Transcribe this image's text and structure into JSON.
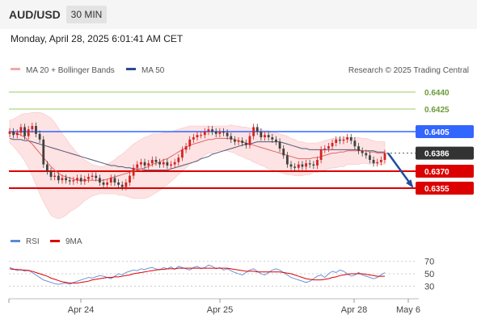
{
  "header": {
    "pair": "AUD/USD",
    "timeframe": "30 MIN"
  },
  "timestamp": "Monday, April 28, 2025 6:01:41 AM CET",
  "legend": {
    "ma20": "MA 20 + Bollinger Bands",
    "ma50": "MA 50"
  },
  "credit": "Research © 2025 Trading Central",
  "rsi_legend": {
    "rsi": "RSI",
    "ma9": "9MA"
  },
  "colors": {
    "bollinger": "#f4a8a8",
    "ma20": "#e06666",
    "ma50": "#555577",
    "resistance": "#3366ff",
    "support": "#dd0000",
    "target": "#99cc66",
    "bull": "#d32222",
    "bear": "#404040",
    "arrow": "#1f4fa0"
  },
  "chart_data": [
    {
      "type": "candlestick",
      "x_ticks": [
        "Apr 24",
        "Apr 25",
        "Apr 28",
        "May 6"
      ],
      "ylim": [
        0.6325,
        0.645
      ],
      "levels": [
        {
          "value": 0.644,
          "label": "0.6440",
          "kind": "target"
        },
        {
          "value": 0.6425,
          "label": "0.6425",
          "kind": "target"
        },
        {
          "value": 0.6405,
          "label": "0.6405",
          "kind": "resistance"
        },
        {
          "value": 0.6386,
          "label": "0.6386",
          "kind": "last"
        },
        {
          "value": 0.637,
          "label": "0.6370",
          "kind": "support"
        },
        {
          "value": 0.6355,
          "label": "0.6355",
          "kind": "support"
        }
      ],
      "close": [
        0.6405,
        0.6402,
        0.6404,
        0.6409,
        0.6401,
        0.6407,
        0.641,
        0.6403,
        0.6398,
        0.6376,
        0.637,
        0.6365,
        0.6366,
        0.6362,
        0.6364,
        0.6362,
        0.6361,
        0.6362,
        0.6364,
        0.6361,
        0.6363,
        0.6365,
        0.6366,
        0.6364,
        0.636,
        0.6358,
        0.636,
        0.6364,
        0.636,
        0.6358,
        0.6356,
        0.636,
        0.6366,
        0.6373,
        0.6376,
        0.6378,
        0.6375,
        0.6377,
        0.638,
        0.6378,
        0.6376,
        0.6378,
        0.6375,
        0.6376,
        0.6378,
        0.6382,
        0.6389,
        0.6392,
        0.6398,
        0.64,
        0.6402,
        0.6402,
        0.6405,
        0.6407,
        0.6405,
        0.6403,
        0.6405,
        0.6404,
        0.6401,
        0.6398,
        0.6396,
        0.6397,
        0.6395,
        0.6393,
        0.6401,
        0.6409,
        0.6405,
        0.64,
        0.6402,
        0.64,
        0.6398,
        0.6396,
        0.639,
        0.6384,
        0.6376,
        0.6374,
        0.6373,
        0.6376,
        0.6374,
        0.6377,
        0.6376,
        0.6375,
        0.638,
        0.6389,
        0.639,
        0.6392,
        0.6395,
        0.6398,
        0.6397,
        0.6398,
        0.64,
        0.6397,
        0.6392,
        0.6388,
        0.6386,
        0.6384,
        0.638,
        0.6377,
        0.6378,
        0.638,
        0.6386
      ],
      "ma20": [
        0.6405,
        0.6404,
        0.6403,
        0.6402,
        0.64,
        0.6397,
        0.6394,
        0.639,
        0.6386,
        0.6382,
        0.6378,
        0.6374,
        0.6371,
        0.6368,
        0.6366,
        0.6365,
        0.6364,
        0.6363,
        0.6362,
        0.6362,
        0.6362,
        0.6362,
        0.6362,
        0.6362,
        0.6362,
        0.6362,
        0.6363,
        0.6364,
        0.6365,
        0.6366,
        0.6367,
        0.6368,
        0.6369,
        0.637,
        0.6371,
        0.6372,
        0.6373,
        0.6374,
        0.6376,
        0.6377,
        0.6378,
        0.638,
        0.6381,
        0.6383,
        0.6385,
        0.6387,
        0.6389,
        0.6391,
        0.6393,
        0.6394,
        0.6395,
        0.6396,
        0.6397,
        0.6398,
        0.6398,
        0.6399,
        0.6399,
        0.6399,
        0.6399,
        0.6399,
        0.6398,
        0.6397,
        0.6396,
        0.6395,
        0.6394,
        0.6393,
        0.6392,
        0.6391,
        0.639,
        0.6389,
        0.6388,
        0.6387,
        0.6386,
        0.6385,
        0.6384,
        0.6383,
        0.6382,
        0.6381,
        0.6381,
        0.6381,
        0.6381,
        0.6382,
        0.6382,
        0.6383,
        0.6384,
        0.6385,
        0.6386,
        0.6386,
        0.6387,
        0.6387,
        0.6388,
        0.6388,
        0.6388,
        0.6388,
        0.6388,
        0.6388,
        0.6387,
        0.6387,
        0.6386,
        0.6386,
        0.6386
      ],
      "ma50": [
        0.6399,
        0.6398,
        0.6398,
        0.6398,
        0.6397,
        0.6397,
        0.6396,
        0.6395,
        0.6394,
        0.6393,
        0.6392,
        0.6391,
        0.639,
        0.6389,
        0.6388,
        0.6387,
        0.6386,
        0.6385,
        0.6384,
        0.6383,
        0.6382,
        0.6381,
        0.638,
        0.6379,
        0.6378,
        0.6377,
        0.6376,
        0.6375,
        0.6375,
        0.6374,
        0.6374,
        0.6373,
        0.6373,
        0.6372,
        0.6372,
        0.6372,
        0.6371,
        0.6371,
        0.6371,
        0.6371,
        0.6371,
        0.6371,
        0.6371,
        0.6372,
        0.6373,
        0.6374,
        0.6375,
        0.6376,
        0.6377,
        0.6378,
        0.6379,
        0.6381,
        0.6382,
        0.6383,
        0.6385,
        0.6386,
        0.6387,
        0.6388,
        0.6389,
        0.639,
        0.6391,
        0.6392,
        0.6393,
        0.6394,
        0.6394,
        0.6395,
        0.6396,
        0.6396,
        0.6396,
        0.6396,
        0.6396,
        0.6396,
        0.6396,
        0.6395,
        0.6394,
        0.6393,
        0.6392,
        0.6391,
        0.639,
        0.639,
        0.6389,
        0.6389,
        0.6389,
        0.6389,
        0.6389,
        0.6389,
        0.6389,
        0.6389,
        0.6389,
        0.6389,
        0.6389,
        0.6389,
        0.6389,
        0.6389,
        0.6388,
        0.6388,
        0.6388,
        0.6388,
        0.6387,
        0.6387,
        0.6387
      ],
      "bb_width": [
        0.001,
        0.0012,
        0.0015,
        0.0018,
        0.0021,
        0.0024,
        0.0028,
        0.0032,
        0.0036,
        0.0039,
        0.0041,
        0.0043,
        0.0042,
        0.004,
        0.0037,
        0.0034,
        0.003,
        0.0027,
        0.0024,
        0.0021,
        0.0018,
        0.0016,
        0.0014,
        0.0013,
        0.0012,
        0.0012,
        0.0013,
        0.0014,
        0.0015,
        0.0017,
        0.0018,
        0.002,
        0.0022,
        0.0024,
        0.0025,
        0.0026,
        0.0027,
        0.0027,
        0.0027,
        0.0026,
        0.0025,
        0.0024,
        0.0023,
        0.0022,
        0.0021,
        0.002,
        0.0019,
        0.0018,
        0.0017,
        0.0016,
        0.0015,
        0.0014,
        0.0013,
        0.0012,
        0.0012,
        0.0011,
        0.0011,
        0.0011,
        0.0011,
        0.0012,
        0.0012,
        0.0013,
        0.0013,
        0.0014,
        0.0014,
        0.0015,
        0.0015,
        0.0016,
        0.0016,
        0.0017,
        0.0017,
        0.0017,
        0.0017,
        0.0017,
        0.0017,
        0.0016,
        0.0016,
        0.0015,
        0.0015,
        0.0014,
        0.0014,
        0.0013,
        0.0013,
        0.0013,
        0.0013,
        0.0013,
        0.0013,
        0.0013,
        0.0013,
        0.0013,
        0.0012,
        0.0012,
        0.0012,
        0.0012,
        0.0011,
        0.0011,
        0.0011,
        0.001,
        0.001,
        0.001,
        0.001
      ],
      "projection": {
        "from": 0.6386,
        "to": 0.6355
      }
    },
    {
      "type": "line",
      "name": "RSI",
      "ylim": [
        20,
        80
      ],
      "y_ticks": [
        70,
        50,
        30
      ],
      "rsi": [
        60,
        58,
        55,
        57,
        54,
        56,
        52,
        48,
        44,
        40,
        38,
        36,
        34,
        33,
        34,
        35,
        33,
        36,
        38,
        40,
        42,
        44,
        43,
        45,
        47,
        46,
        44,
        42,
        46,
        50,
        48,
        52,
        54,
        56,
        55,
        58,
        57,
        59,
        60,
        58,
        56,
        60,
        58,
        61,
        57,
        62,
        60,
        58,
        56,
        60,
        62,
        58,
        60,
        64,
        62,
        58,
        60,
        56,
        58,
        55,
        52,
        50,
        48,
        52,
        56,
        58,
        54,
        50,
        48,
        52,
        56,
        58,
        56,
        52,
        48,
        44,
        42,
        40,
        38,
        36,
        38,
        42,
        46,
        48,
        44,
        50,
        54,
        52,
        56,
        54,
        50,
        46,
        48,
        52,
        48,
        46,
        44,
        42,
        44,
        48,
        52
      ],
      "ma9": [
        58,
        57,
        57,
        56,
        56,
        55,
        54,
        52,
        50,
        48,
        46,
        43,
        41,
        39,
        37,
        36,
        35,
        35,
        35,
        36,
        37,
        38,
        40,
        41,
        42,
        43,
        44,
        44,
        45,
        45,
        46,
        47,
        48,
        50,
        51,
        52,
        53,
        54,
        55,
        56,
        57,
        57,
        58,
        58,
        58,
        59,
        59,
        59,
        59,
        59,
        59,
        59,
        59,
        59,
        59,
        59,
        59,
        59,
        59,
        58,
        57,
        56,
        55,
        54,
        54,
        54,
        53,
        53,
        53,
        53,
        53,
        53,
        53,
        52,
        51,
        50,
        48,
        46,
        44,
        42,
        41,
        40,
        40,
        40,
        41,
        42,
        44,
        45,
        47,
        48,
        49,
        50,
        50,
        50,
        50,
        49,
        48,
        47,
        46,
        46,
        46
      ]
    }
  ]
}
